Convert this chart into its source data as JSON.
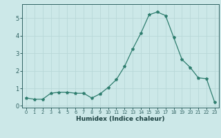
{
  "x": [
    0,
    1,
    2,
    3,
    4,
    5,
    6,
    7,
    8,
    9,
    10,
    11,
    12,
    13,
    14,
    15,
    16,
    17,
    18,
    19,
    20,
    21,
    22,
    23
  ],
  "y": [
    0.45,
    0.38,
    0.38,
    0.72,
    0.78,
    0.78,
    0.72,
    0.72,
    0.45,
    0.68,
    1.05,
    1.5,
    2.25,
    3.25,
    4.15,
    5.2,
    5.35,
    5.15,
    3.9,
    2.65,
    2.2,
    1.6,
    1.55,
    0.2
  ],
  "line_color": "#2e7d6e",
  "marker": "*",
  "marker_size": 3,
  "xlabel": "Humidex (Indice chaleur)",
  "ylim": [
    -0.1,
    5.8
  ],
  "xlim": [
    -0.5,
    23.5
  ],
  "yticks": [
    0,
    1,
    2,
    3,
    4,
    5
  ],
  "xticks": [
    0,
    1,
    2,
    3,
    4,
    5,
    6,
    7,
    8,
    9,
    10,
    11,
    12,
    13,
    14,
    15,
    16,
    17,
    18,
    19,
    20,
    21,
    22,
    23
  ],
  "bg_color": "#cce8e8",
  "grid_color": "#b8d8d8",
  "tick_color": "#2e6060",
  "label_color": "#1a4040"
}
